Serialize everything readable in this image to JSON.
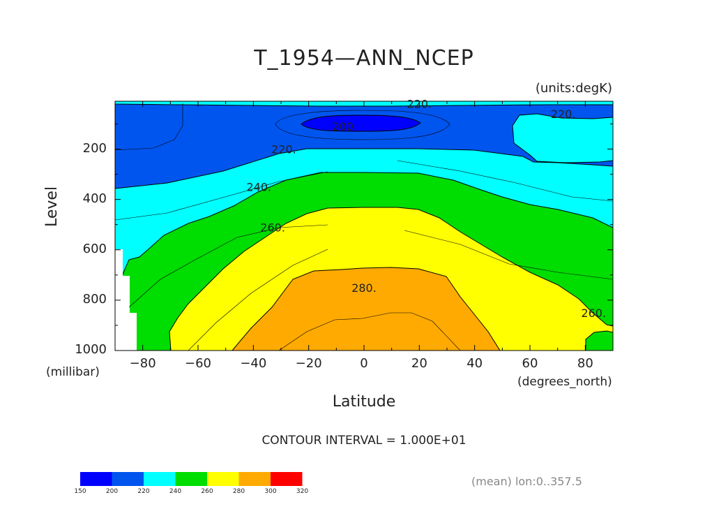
{
  "chart_data": {
    "type": "heatmap",
    "subtype": "filled-contour",
    "title": "T_1954—ANN_NCEP",
    "units": "(units:degK)",
    "ylabel": "Level",
    "yunit": "(millibar)",
    "xlabel": "Latitude",
    "xunit": "(degrees_north)",
    "contour_interval_text": "CONTOUR INTERVAL = 1.000E+01",
    "mean_text": "(mean) lon:0..357.5",
    "xlim": [
      -90,
      90
    ],
    "ylim": [
      1000,
      10
    ],
    "x_ticks": [
      -80,
      -60,
      -40,
      -20,
      0,
      20,
      40,
      60,
      80
    ],
    "x_tick_labels": [
      "−80",
      "−60",
      "−40",
      "−20",
      "0",
      "20",
      "40",
      "60",
      "80"
    ],
    "y_ticks": [
      200,
      400,
      600,
      800,
      1000
    ],
    "y_tick_labels": [
      "200",
      "400",
      "600",
      "800",
      "1000"
    ],
    "contour_labels": [
      {
        "text": "220.",
        "lat": 20,
        "p": 20
      },
      {
        "text": "220.",
        "lat": 72,
        "p": 60
      },
      {
        "text": "200.",
        "lat": -7,
        "p": 110
      },
      {
        "text": "220.",
        "lat": -29,
        "p": 200
      },
      {
        "text": "240.",
        "lat": -38,
        "p": 350
      },
      {
        "text": "260.",
        "lat": -33,
        "p": 510
      },
      {
        "text": "280.",
        "lat": 0,
        "p": 750
      },
      {
        "text": "260.",
        "lat": 83,
        "p": 850
      }
    ],
    "colorbar": {
      "levels": [
        150,
        200,
        220,
        240,
        260,
        280,
        300,
        320
      ],
      "colors": [
        "#0000ff",
        "#0055ee",
        "#00ffff",
        "#00dd00",
        "#ffff00",
        "#ffaa00",
        "#ff0000"
      ]
    }
  }
}
